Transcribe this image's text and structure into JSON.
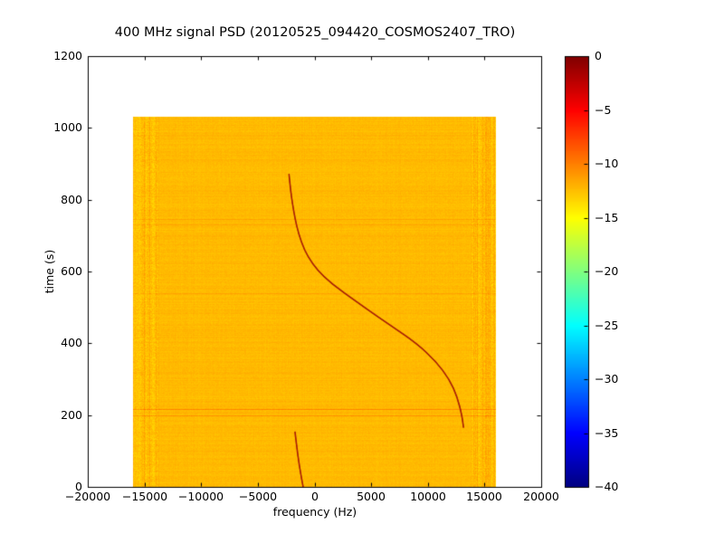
{
  "chart_data": {
    "type": "heatmap",
    "title": "400 MHz signal PSD (20120525_094420_COSMOS2407_TRO)",
    "xlabel": "frequency (Hz)",
    "ylabel": "time (s)",
    "xlim": [
      -20000,
      20000
    ],
    "ylim": [
      0,
      1200
    ],
    "grid": false,
    "colormap": "jet",
    "legend": "none",
    "colorbar": {
      "vmin": -40,
      "vmax": 0,
      "position": "right",
      "ticks": [
        {
          "value": 0,
          "label": "0"
        },
        {
          "value": -5,
          "label": "−5"
        },
        {
          "value": -10,
          "label": "−10"
        },
        {
          "value": -15,
          "label": "−15"
        },
        {
          "value": -20,
          "label": "−20"
        },
        {
          "value": -25,
          "label": "−25"
        },
        {
          "value": -30,
          "label": "−30"
        },
        {
          "value": -35,
          "label": "−35"
        },
        {
          "value": -40,
          "label": "−40"
        }
      ]
    },
    "x_ticks": [
      {
        "value": -20000,
        "label": "−20000"
      },
      {
        "value": -15000,
        "label": "−15000"
      },
      {
        "value": -10000,
        "label": "−10000"
      },
      {
        "value": -5000,
        "label": "−5000"
      },
      {
        "value": 0,
        "label": "0"
      },
      {
        "value": 5000,
        "label": "5000"
      },
      {
        "value": 10000,
        "label": "10000"
      },
      {
        "value": 15000,
        "label": "15000"
      },
      {
        "value": 20000,
        "label": "20000"
      }
    ],
    "y_ticks": [
      {
        "value": 0,
        "label": "0"
      },
      {
        "value": 200,
        "label": "200"
      },
      {
        "value": 400,
        "label": "400"
      },
      {
        "value": 600,
        "label": "600"
      },
      {
        "value": 800,
        "label": "800"
      },
      {
        "value": 1000,
        "label": "1000"
      },
      {
        "value": 1200,
        "label": "1200"
      }
    ],
    "image_extent": {
      "freq": [
        -16000,
        16000
      ],
      "time": [
        0,
        1030
      ]
    },
    "background_level_db": -12.3,
    "edge_band_width_hz": 2200,
    "background_color_hint": "#f2c400",
    "doppler_track": {
      "description": "S-shaped satellite Doppler frequency track",
      "level_db": -1,
      "points": [
        [
          -2250,
          872
        ],
        [
          -2120,
          830
        ],
        [
          -1950,
          790
        ],
        [
          -1700,
          745
        ],
        [
          -1400,
          705
        ],
        [
          -900,
          660
        ],
        [
          -200,
          622
        ],
        [
          800,
          585
        ],
        [
          2300,
          548
        ],
        [
          4400,
          500
        ],
        [
          6700,
          450
        ],
        [
          9000,
          400
        ],
        [
          10700,
          350
        ],
        [
          11900,
          300
        ],
        [
          12600,
          250
        ],
        [
          13000,
          200
        ],
        [
          13150,
          165
        ]
      ]
    },
    "secondary_track": {
      "description": "short Doppler track segment near bottom",
      "level_db": -1,
      "points": [
        [
          -1720,
          154
        ],
        [
          -1560,
          110
        ],
        [
          -1340,
          60
        ],
        [
          -1120,
          20
        ],
        [
          -1000,
          0
        ]
      ]
    }
  }
}
